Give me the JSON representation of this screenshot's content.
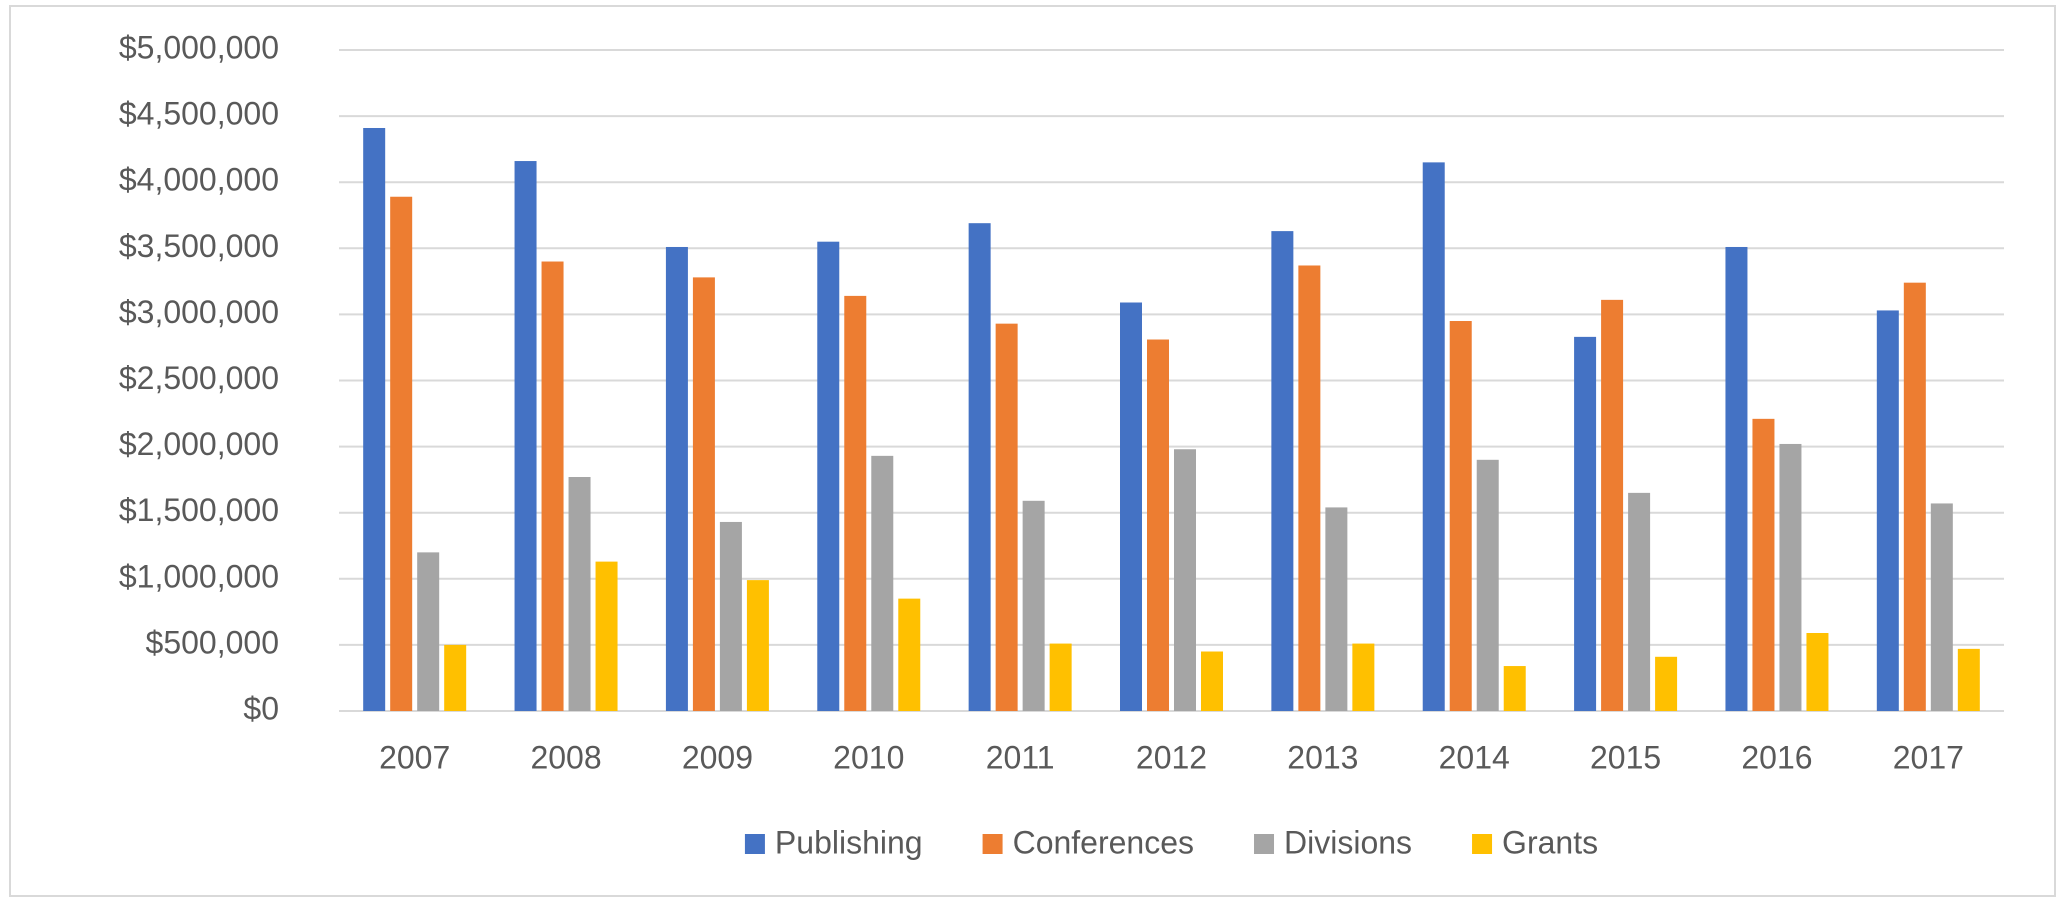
{
  "chart_data": {
    "type": "bar",
    "categories": [
      "2007",
      "2008",
      "2009",
      "2010",
      "2011",
      "2012",
      "2013",
      "2014",
      "2015",
      "2016",
      "2017"
    ],
    "series": [
      {
        "name": "Publishing",
        "color": "#4472c4",
        "values": [
          4410000,
          4160000,
          3510000,
          3550000,
          3690000,
          3090000,
          3630000,
          4150000,
          2830000,
          3510000,
          3030000
        ]
      },
      {
        "name": "Conferences",
        "color": "#ed7d31",
        "values": [
          3890000,
          3400000,
          3280000,
          3140000,
          2930000,
          2810000,
          3370000,
          2950000,
          3110000,
          2210000,
          3240000
        ]
      },
      {
        "name": "Divisions",
        "color": "#a5a5a5",
        "values": [
          1200000,
          1770000,
          1430000,
          1930000,
          1590000,
          1980000,
          1540000,
          1900000,
          1650000,
          2020000,
          1570000
        ]
      },
      {
        "name": "Grants",
        "color": "#ffc000",
        "values": [
          500000,
          1130000,
          990000,
          850000,
          510000,
          450000,
          510000,
          340000,
          410000,
          590000,
          470000
        ]
      }
    ],
    "ylim": [
      0,
      5000000
    ],
    "yticks": [
      {
        "value": 0,
        "label": "$0"
      },
      {
        "value": 500000,
        "label": "$500,000"
      },
      {
        "value": 1000000,
        "label": "$1,000,000"
      },
      {
        "value": 1500000,
        "label": "$1,500,000"
      },
      {
        "value": 2000000,
        "label": "$2,000,000"
      },
      {
        "value": 2500000,
        "label": "$2,500,000"
      },
      {
        "value": 3000000,
        "label": "$3,000,000"
      },
      {
        "value": 3500000,
        "label": "$3,500,000"
      },
      {
        "value": 4000000,
        "label": "$4,000,000"
      },
      {
        "value": 4500000,
        "label": "$4,500,000"
      },
      {
        "value": 5000000,
        "label": "$5,000,000"
      }
    ],
    "grid": true,
    "legend": "bottom"
  }
}
